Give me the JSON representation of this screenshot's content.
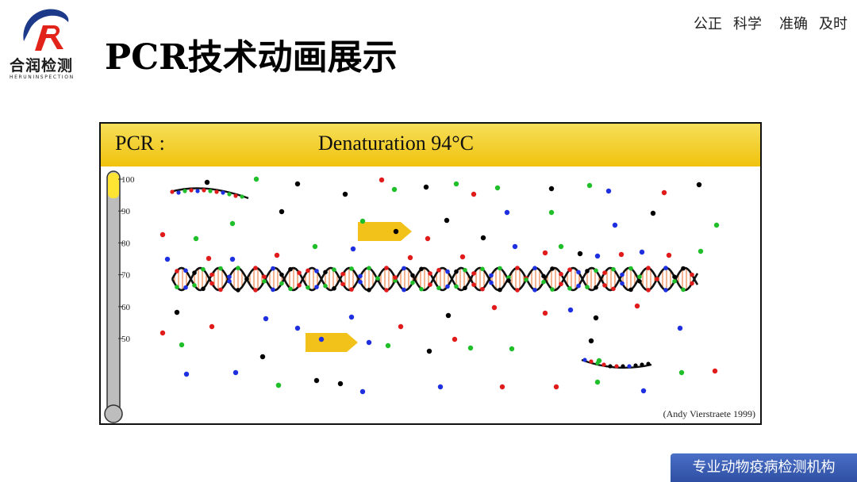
{
  "header": {
    "logo_cn": "合润检测",
    "logo_en": "HERUNINSPECTION",
    "title": "PCR技术动画展示",
    "slogan": [
      "公正",
      "科学",
      "准确",
      "及时"
    ]
  },
  "animation": {
    "pcr_label": "PCR :",
    "step_label": "Denaturation 94°C",
    "credit": "(Andy Vierstraete 1999)",
    "thermometer_ticks": [
      "100",
      "90",
      "80",
      "70",
      "60",
      "50"
    ],
    "thermometer_level_c": 94,
    "nucleotide_colors": [
      "#e11b1b",
      "#1d2fe0",
      "#1fbf2a",
      "#000000"
    ],
    "primer_color": "#f2c21b"
  },
  "footer": {
    "badge": "专业动物疫病检测机构"
  }
}
